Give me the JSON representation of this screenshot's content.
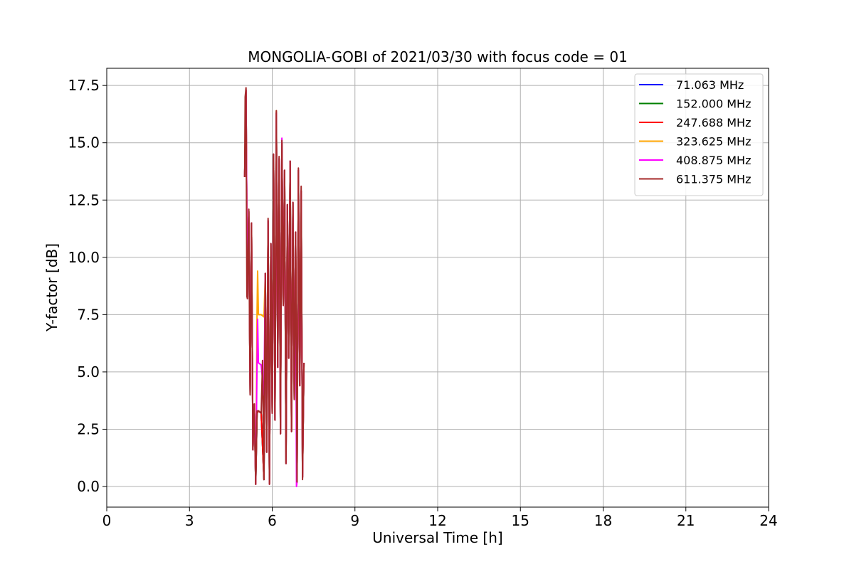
{
  "chart_data": {
    "type": "line",
    "title": "MONGOLIA-GOBI of 2021/03/30 with focus code = 01",
    "xlabel": "Universal Time [h]",
    "ylabel": "Y-factor [dB]",
    "xlim": [
      0,
      24
    ],
    "ylim": [
      -0.9,
      18.25
    ],
    "xticks": [
      0,
      3,
      6,
      9,
      12,
      15,
      18,
      21,
      24
    ],
    "xtick_labels": [
      "0",
      "3",
      "6",
      "9",
      "12",
      "15",
      "18",
      "21",
      "24"
    ],
    "yticks": [
      0,
      2.5,
      5,
      7.5,
      10,
      12.5,
      15,
      17.5
    ],
    "ytick_labels": [
      "0.0",
      "2.5",
      "5.0",
      "7.5",
      "10.0",
      "12.5",
      "15.0",
      "17.5"
    ],
    "grid": true,
    "legend_position": "top-right",
    "series": [
      {
        "name": " 71.063 MHz",
        "color": "#0000ff",
        "x": [
          5.0,
          5.05,
          5.1,
          5.15,
          5.2,
          5.25,
          5.3,
          5.35,
          5.4,
          5.45,
          5.5,
          5.6,
          5.7,
          5.75,
          5.8,
          5.85,
          5.9,
          5.95,
          6.0,
          6.05,
          6.1,
          6.15,
          6.2,
          6.25,
          6.3,
          6.35,
          6.4,
          6.45,
          6.5,
          6.55,
          6.6,
          6.65,
          6.7,
          6.75,
          6.8,
          6.85,
          6.9,
          6.95,
          7.0,
          7.05,
          7.1,
          7.15
        ],
        "y": [
          13.5,
          17.3,
          8.2,
          12.0,
          4.0,
          11.5,
          1.6,
          3.6,
          0.1,
          3.2,
          3.3,
          3.2,
          0.3,
          9.3,
          1.5,
          11.6,
          0.1,
          10.6,
          3.2,
          14.5,
          2.9,
          16.3,
          5.2,
          14.3,
          2.3,
          15.0,
          7.9,
          13.8,
          1.0,
          12.3,
          5.6,
          14.2,
          2.4,
          12.4,
          3.8,
          11.1,
          0.2,
          13.8,
          4.4,
          12.9,
          0.4,
          5.4
        ]
      },
      {
        "name": "152.000 MHz",
        "color": "#008000",
        "x": [
          5.0,
          5.05,
          5.1,
          5.15,
          5.2,
          5.25,
          5.3,
          5.35,
          5.4,
          5.45,
          5.5,
          5.6,
          5.7,
          5.75,
          5.8,
          5.85,
          5.9,
          5.95,
          6.0,
          6.05,
          6.1,
          6.15,
          6.2,
          6.25,
          6.3,
          6.35,
          6.4,
          6.45,
          6.5,
          6.55,
          6.6,
          6.65,
          6.7,
          6.75,
          6.8,
          6.85,
          6.9,
          6.95,
          7.0,
          7.05,
          7.1,
          7.15
        ],
        "y": [
          13.5,
          17.3,
          8.2,
          12.0,
          4.0,
          11.5,
          1.6,
          3.6,
          0.1,
          3.2,
          3.3,
          3.2,
          0.3,
          9.3,
          1.5,
          11.6,
          0.1,
          10.6,
          3.2,
          14.5,
          2.9,
          16.3,
          5.2,
          14.3,
          2.3,
          15.0,
          7.9,
          13.8,
          1.0,
          12.3,
          5.6,
          14.2,
          2.4,
          12.4,
          3.8,
          11.1,
          0.2,
          13.8,
          4.4,
          12.9,
          0.4,
          5.4
        ]
      },
      {
        "name": "247.688 MHz",
        "color": "#ff0000",
        "x": [
          5.0,
          5.05,
          5.1,
          5.15,
          5.2,
          5.25,
          5.3,
          5.35,
          5.4,
          5.45,
          5.5,
          5.6,
          5.7,
          5.75,
          5.8,
          5.85,
          5.9,
          5.95,
          6.0,
          6.05,
          6.1,
          6.15,
          6.2,
          6.25,
          6.3,
          6.35,
          6.4,
          6.45,
          6.5,
          6.55,
          6.6,
          6.65,
          6.7,
          6.75,
          6.8,
          6.85,
          6.9,
          6.95,
          7.0,
          7.05,
          7.1,
          7.15
        ],
        "y": [
          13.5,
          17.3,
          8.2,
          12.0,
          4.0,
          11.5,
          1.6,
          3.6,
          0.1,
          3.2,
          3.3,
          3.2,
          0.3,
          9.3,
          1.5,
          11.6,
          0.1,
          10.6,
          3.2,
          14.5,
          2.9,
          16.3,
          5.2,
          14.3,
          2.3,
          15.0,
          7.9,
          13.8,
          1.0,
          12.3,
          5.6,
          14.2,
          2.4,
          12.4,
          3.8,
          11.1,
          0.2,
          13.8,
          4.4,
          12.9,
          0.4,
          5.4
        ]
      },
      {
        "name": "323.625 MHz",
        "color": "#ffa500",
        "x": [
          5.0,
          5.05,
          5.1,
          5.15,
          5.2,
          5.25,
          5.3,
          5.35,
          5.4,
          5.45,
          5.47,
          5.5,
          5.6,
          5.7,
          5.75,
          5.8,
          5.85,
          5.9,
          5.95,
          6.0,
          6.05,
          6.1,
          6.15,
          6.2,
          6.25,
          6.3,
          6.35,
          6.4,
          6.45,
          6.5,
          6.55,
          6.6,
          6.65,
          6.7,
          6.75,
          6.8,
          6.85,
          6.9,
          6.95,
          7.0,
          7.05,
          7.1,
          7.15
        ],
        "y": [
          13.5,
          17.3,
          8.2,
          12.0,
          4.0,
          11.5,
          1.6,
          3.6,
          0.1,
          7.6,
          9.4,
          7.5,
          7.5,
          7.4,
          9.3,
          1.5,
          11.6,
          0.1,
          10.6,
          3.2,
          14.5,
          2.9,
          16.4,
          5.2,
          14.3,
          2.3,
          15.0,
          7.9,
          13.8,
          1.0,
          12.3,
          5.6,
          14.2,
          2.4,
          12.4,
          3.8,
          11.1,
          0.2,
          13.8,
          4.4,
          12.9,
          0.4,
          5.4
        ]
      },
      {
        "name": "408.875 MHz",
        "color": "#ff00ff",
        "x": [
          5.0,
          5.05,
          5.1,
          5.15,
          5.2,
          5.25,
          5.3,
          5.35,
          5.4,
          5.45,
          5.47,
          5.5,
          5.6,
          5.7,
          5.75,
          5.8,
          5.85,
          5.9,
          5.95,
          6.0,
          6.05,
          6.1,
          6.15,
          6.2,
          6.25,
          6.3,
          6.35,
          6.4,
          6.45,
          6.5,
          6.55,
          6.6,
          6.65,
          6.7,
          6.75,
          6.8,
          6.85,
          6.88,
          6.9,
          6.95,
          7.0,
          7.05,
          7.1,
          7.15
        ],
        "y": [
          13.5,
          17.3,
          8.2,
          12.0,
          4.0,
          11.5,
          1.6,
          3.6,
          0.1,
          5.4,
          7.3,
          5.4,
          5.3,
          4.0,
          9.3,
          1.5,
          11.6,
          0.1,
          10.6,
          3.2,
          14.5,
          2.9,
          16.3,
          5.2,
          14.3,
          2.3,
          15.2,
          7.9,
          13.8,
          1.0,
          12.3,
          5.6,
          14.2,
          2.4,
          12.4,
          3.8,
          11.1,
          0.0,
          0.2,
          13.8,
          4.4,
          12.9,
          0.4,
          5.4
        ]
      },
      {
        "name": "611.375 MHz",
        "color": "#a52a2a",
        "x": [
          5.0,
          5.02,
          5.05,
          5.08,
          5.1,
          5.15,
          5.18,
          5.2,
          5.25,
          5.3,
          5.35,
          5.4,
          5.45,
          5.5,
          5.6,
          5.65,
          5.7,
          5.75,
          5.8,
          5.85,
          5.9,
          5.95,
          6.0,
          6.05,
          6.1,
          6.15,
          6.2,
          6.25,
          6.3,
          6.35,
          6.4,
          6.45,
          6.5,
          6.55,
          6.6,
          6.65,
          6.7,
          6.75,
          6.8,
          6.85,
          6.9,
          6.95,
          7.0,
          7.05,
          7.1,
          7.15
        ],
        "y": [
          13.5,
          17.0,
          17.4,
          8.3,
          8.2,
          12.1,
          6.8,
          4.0,
          11.5,
          1.6,
          3.6,
          0.1,
          3.3,
          3.3,
          3.2,
          5.5,
          0.3,
          9.3,
          1.5,
          11.7,
          0.1,
          10.6,
          3.2,
          14.5,
          2.9,
          16.4,
          5.2,
          14.4,
          2.3,
          15.1,
          7.9,
          13.8,
          1.0,
          12.3,
          5.6,
          14.2,
          2.4,
          12.4,
          3.8,
          11.1,
          0.2,
          13.9,
          4.4,
          13.1,
          0.3,
          5.4
        ]
      }
    ]
  }
}
